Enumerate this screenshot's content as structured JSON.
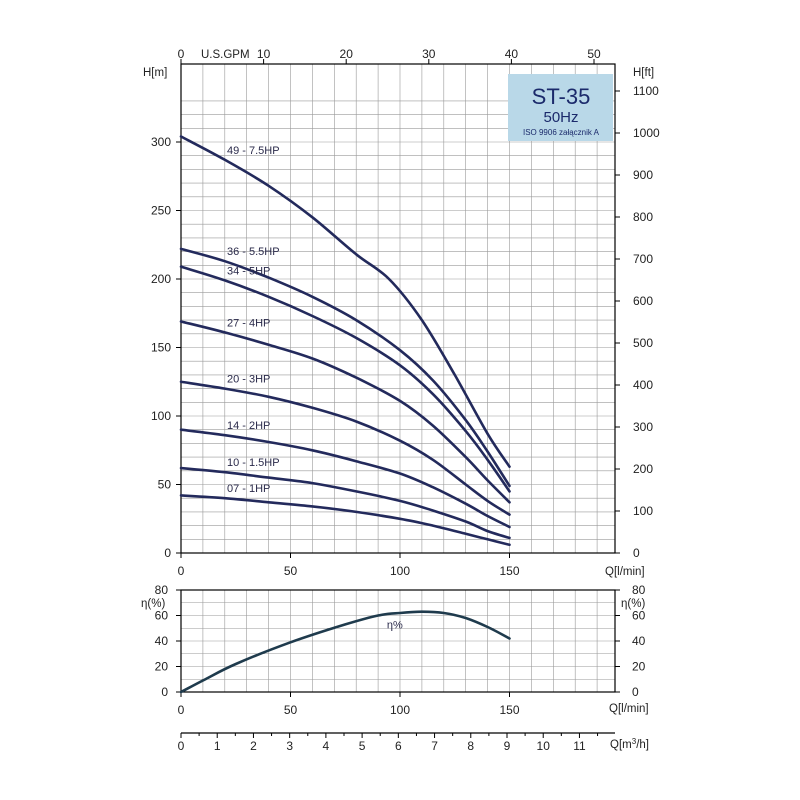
{
  "badge": {
    "title": "ST-35",
    "frequency": "50Hz",
    "standard": "ISO 9906 załącznik A",
    "fill_color": "#b9d8e8"
  },
  "colors": {
    "curve": "#232a5c",
    "efficiency_curve": "#1f3b4d",
    "grid": "#9a9a9a",
    "frame": "#000000"
  },
  "chart_data": [
    {
      "type": "line",
      "xlabel": "Q[l/min]",
      "ylabel_left": "H[m]",
      "ylabel_right": "H[ft]",
      "top_axis_label": "U.S.GPM",
      "xlim": [
        0,
        200
      ],
      "ylim": [
        0,
        330
      ],
      "x_ticks": [
        0,
        50,
        100,
        150
      ],
      "y_ticks": [
        0,
        50,
        100,
        150,
        200,
        250,
        300
      ],
      "ft_ticks": [
        0,
        100,
        200,
        300,
        400,
        500,
        600,
        700,
        800,
        900,
        1000,
        1100
      ],
      "gpm_ticks": [
        0,
        10,
        20,
        30,
        40,
        50
      ],
      "grid": true,
      "series": [
        {
          "name": "49 - 7.5HP",
          "x": [
            0,
            20,
            40,
            60,
            80,
            95,
            110,
            125,
            140,
            150
          ],
          "y": [
            304,
            287,
            268,
            245,
            218,
            200,
            170,
            130,
            87,
            63
          ]
        },
        {
          "name": "36 - 5.5HP",
          "x": [
            0,
            20,
            40,
            60,
            80,
            100,
            115,
            130,
            140,
            150
          ],
          "y": [
            222,
            213,
            201,
            187,
            170,
            148,
            126,
            97,
            74,
            49
          ]
        },
        {
          "name": "34 - 5HP",
          "x": [
            0,
            20,
            40,
            60,
            80,
            100,
            115,
            130,
            140,
            150
          ],
          "y": [
            209,
            199,
            187,
            173,
            157,
            137,
            116,
            89,
            68,
            45
          ]
        },
        {
          "name": "27 - 4HP",
          "x": [
            0,
            20,
            40,
            60,
            80,
            100,
            115,
            130,
            140,
            150
          ],
          "y": [
            169,
            161,
            152,
            142,
            128,
            111,
            93,
            70,
            53,
            37
          ]
        },
        {
          "name": "20 - 3HP",
          "x": [
            0,
            20,
            40,
            60,
            80,
            100,
            115,
            130,
            140,
            150
          ],
          "y": [
            125,
            120,
            114,
            106,
            96,
            82,
            68,
            50,
            38,
            28
          ]
        },
        {
          "name": "14 - 2HP",
          "x": [
            0,
            20,
            40,
            60,
            80,
            100,
            115,
            130,
            140,
            150
          ],
          "y": [
            90,
            86,
            81,
            75,
            67,
            58,
            48,
            36,
            27,
            19
          ]
        },
        {
          "name": "10 - 1.5HP",
          "x": [
            0,
            20,
            40,
            60,
            80,
            100,
            115,
            130,
            140,
            150
          ],
          "y": [
            62,
            59,
            55,
            51,
            45,
            38,
            31,
            23,
            16,
            11
          ]
        },
        {
          "name": "07 - 1HP",
          "x": [
            0,
            20,
            40,
            60,
            80,
            100,
            115,
            130,
            140,
            150
          ],
          "y": [
            42,
            40,
            37,
            34,
            30,
            25,
            20,
            14,
            10,
            6
          ]
        }
      ]
    },
    {
      "type": "line",
      "xlabel": "Q[l/min]",
      "ylabel_left": "η(%)",
      "ylabel_right": "η(%)",
      "xlim": [
        0,
        200
      ],
      "ylim": [
        0,
        80
      ],
      "x_ticks": [
        0,
        50,
        100,
        150
      ],
      "y_ticks": [
        0,
        20,
        40,
        60,
        80
      ],
      "grid": true,
      "series": [
        {
          "name": "η%",
          "x": [
            0,
            10,
            25,
            50,
            75,
            90,
            100,
            110,
            120,
            130,
            140,
            150
          ],
          "y": [
            0,
            9,
            22,
            39,
            53,
            60,
            62,
            63,
            62,
            58,
            51,
            42
          ]
        }
      ]
    },
    {
      "type": "axis",
      "xlabel": "Q[m³/h]",
      "x_ticks": [
        0,
        1,
        2,
        3,
        4,
        5,
        6,
        7,
        8,
        9,
        10,
        11
      ],
      "xlim": [
        0,
        12
      ]
    }
  ]
}
